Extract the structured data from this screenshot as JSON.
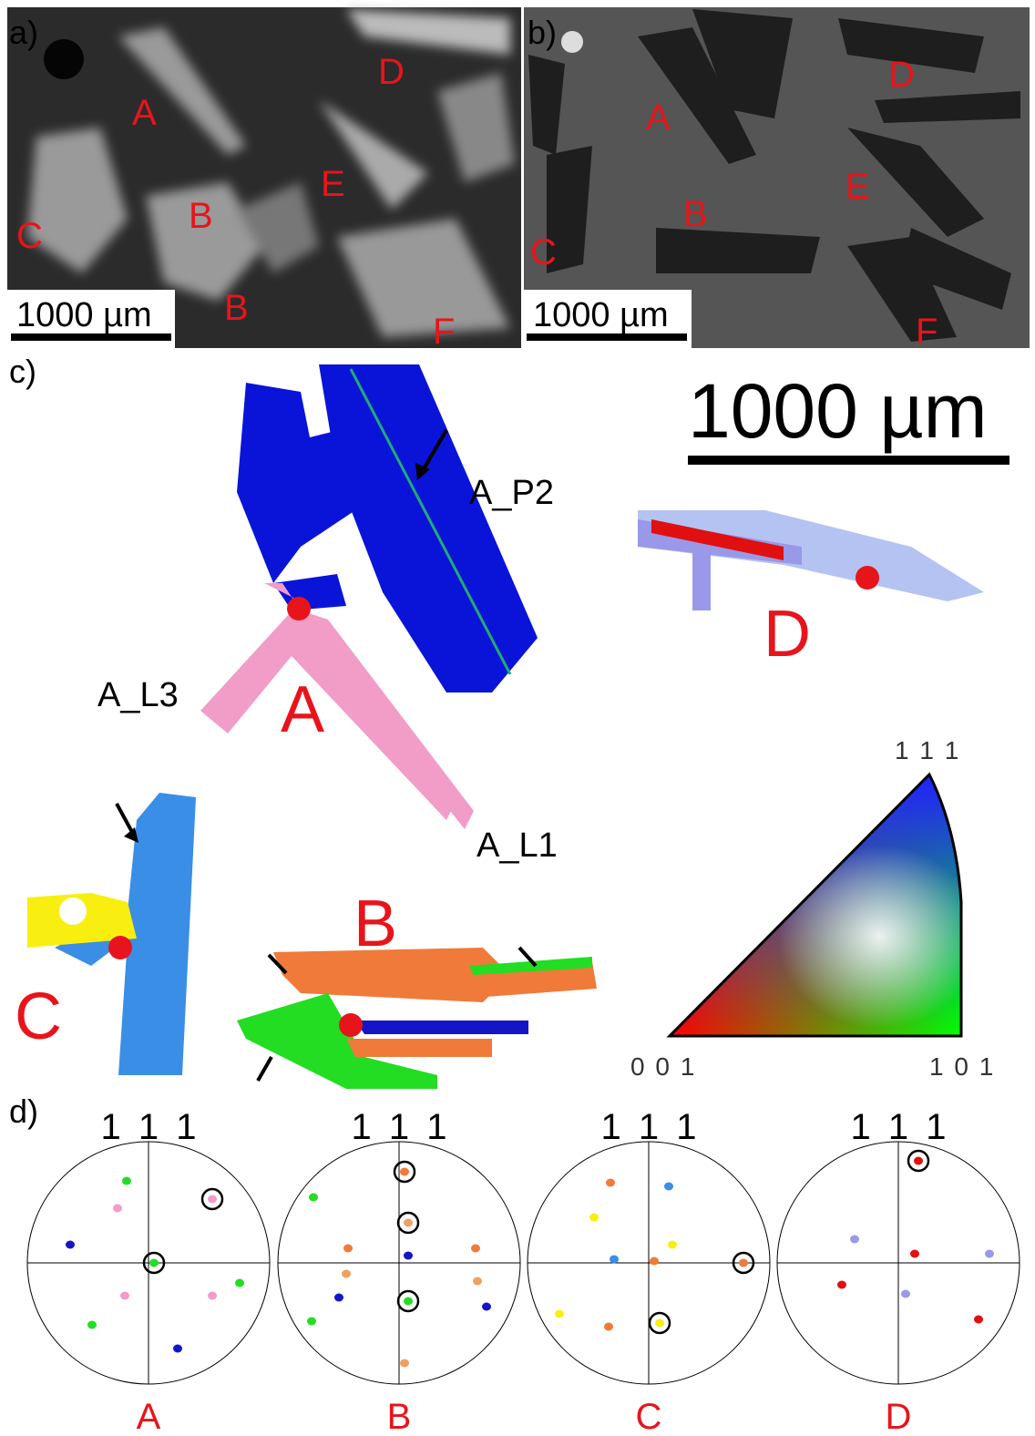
{
  "panel_a": {
    "label": "a)",
    "scale_bar": "1000 µm",
    "grain_labels": [
      "A",
      "D",
      "E",
      "B",
      "C",
      "B",
      "F"
    ]
  },
  "panel_b": {
    "label": "b)",
    "scale_bar": "1000 µm",
    "grain_labels": [
      "A",
      "D",
      "E",
      "B",
      "C",
      "F"
    ]
  },
  "panel_c": {
    "label": "c)",
    "scale_bar": "1000 µm",
    "annotations": [
      "A_P2",
      "A_L3",
      "A_L1"
    ],
    "grain_labels": [
      "A",
      "D",
      "C",
      "B"
    ],
    "ipf_key": {
      "top": "1 1 1",
      "left": "0 0 1",
      "right": "1 0 1"
    }
  },
  "panel_d": {
    "label": "d)",
    "pole_figures": [
      {
        "pole": "1 1 1",
        "grain": "A"
      },
      {
        "pole": "1 1 1",
        "grain": "B"
      },
      {
        "pole": "1 1 1",
        "grain": "C"
      },
      {
        "pole": "1 1 1",
        "grain": "D"
      }
    ]
  }
}
